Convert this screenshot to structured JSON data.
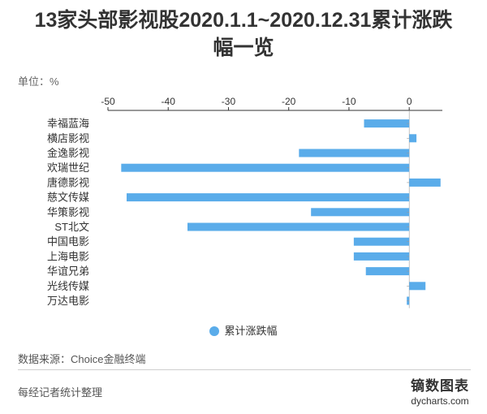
{
  "title_line1": "13家头部影视股2020.1.1~2020.12.31累计涨跌",
  "title_line2": "幅一览",
  "unit_label": "单位：%",
  "legend_label": "累计涨跌幅",
  "source": "数据来源：Choice金融终端",
  "compiler": "每经记者统计整理",
  "brand_cn": "镝数图表",
  "brand_en": "dycharts.com",
  "colors": {
    "bar": "#5aacea",
    "axis": "#333333",
    "text": "#333333"
  },
  "chart_data": {
    "type": "bar",
    "orientation": "horizontal",
    "categories": [
      "幸福蓝海",
      "横店影视",
      "金逸影视",
      "欢瑞世纪",
      "唐德影视",
      "慈文传媒",
      "华策影视",
      "ST北文",
      "中国电影",
      "上海电影",
      "华谊兄弟",
      "光线传媒",
      "万达电影"
    ],
    "series": [
      {
        "name": "累计涨跌幅",
        "values": [
          -7.5,
          1.2,
          -18.3,
          -47.8,
          5.2,
          -46.9,
          -16.3,
          -36.8,
          -9.2,
          -9.2,
          -7.2,
          2.7,
          -0.4
        ]
      }
    ],
    "xlim": [
      -50,
      5.5
    ],
    "xticks": [
      -50,
      -40,
      -30,
      -20,
      -10,
      0
    ],
    "xtick_labels": [
      "-50",
      "-40",
      "-30",
      "-20",
      "-10",
      "0"
    ],
    "axis_position": "top",
    "grid": false,
    "legend": "bottom-center"
  }
}
